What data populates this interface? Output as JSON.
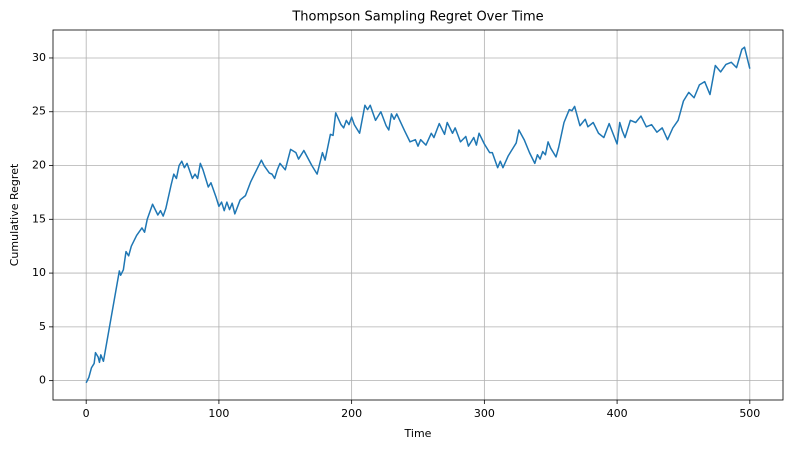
{
  "chart_data": {
    "type": "line",
    "title": "Thompson Sampling Regret Over Time",
    "xlabel": "Time",
    "ylabel": "Cumulative Regret",
    "x": [
      0,
      2,
      4,
      6,
      7,
      9,
      10,
      11,
      13,
      25,
      26,
      28,
      30,
      32,
      34,
      38,
      42,
      44,
      46,
      50,
      54,
      56,
      58,
      60,
      64,
      66,
      68,
      70,
      72,
      74,
      76,
      80,
      82,
      84,
      86,
      88,
      92,
      94,
      98,
      100,
      102,
      104,
      106,
      108,
      110,
      112,
      116,
      120,
      124,
      128,
      132,
      134,
      138,
      140,
      142,
      144,
      146,
      150,
      154,
      158,
      160,
      164,
      170,
      174,
      178,
      180,
      184,
      186,
      188,
      192,
      194,
      196,
      198,
      200,
      202,
      206,
      210,
      212,
      214,
      218,
      222,
      226,
      228,
      230,
      232,
      234,
      240,
      244,
      248,
      250,
      252,
      256,
      260,
      262,
      266,
      270,
      272,
      276,
      278,
      282,
      286,
      288,
      292,
      294,
      296,
      300,
      304,
      306,
      310,
      312,
      314,
      318,
      320,
      322,
      324,
      326,
      330,
      334,
      338,
      340,
      342,
      344,
      346,
      348,
      350,
      352,
      354,
      356,
      360,
      364,
      366,
      368,
      372,
      376,
      378,
      382,
      386,
      390,
      394,
      400,
      402,
      404,
      406,
      410,
      414,
      418,
      422,
      426,
      430,
      434,
      438,
      442,
      446,
      450,
      454,
      458,
      462,
      466,
      470,
      474,
      478,
      482,
      486,
      490,
      494,
      496,
      500
    ],
    "values": [
      -0.2,
      0.3,
      1.2,
      1.6,
      2.6,
      2.2,
      1.7,
      2.4,
      1.8,
      10.2,
      9.8,
      10.3,
      12,
      11.6,
      12.5,
      13.5,
      14.2,
      13.8,
      15,
      16.4,
      15.4,
      15.8,
      15.3,
      16,
      18.2,
      19.2,
      18.8,
      20,
      20.4,
      19.8,
      20.2,
      18.8,
      19.2,
      18.8,
      20.2,
      19.6,
      18,
      18.4,
      17,
      16.2,
      16.6,
      15.8,
      16.6,
      15.9,
      16.5,
      15.5,
      16.8,
      17.2,
      18.5,
      19.5,
      20.5,
      20,
      19.3,
      19.2,
      18.8,
      19.6,
      20.2,
      19.6,
      21.5,
      21.2,
      20.6,
      21.4,
      20,
      19.2,
      21.2,
      20.5,
      22.9,
      22.8,
      24.9,
      23.8,
      23.5,
      24.2,
      23.8,
      24.5,
      23.8,
      23,
      25.6,
      25.2,
      25.6,
      24.2,
      25,
      23.7,
      23.3,
      24.8,
      24.3,
      24.8,
      23.2,
      22.2,
      22.4,
      21.8,
      22.4,
      21.9,
      23,
      22.6,
      23.9,
      22.9,
      24,
      23,
      23.5,
      22.2,
      22.7,
      21.8,
      22.6,
      21.9,
      23,
      22,
      21.2,
      21.2,
      19.8,
      20.4,
      19.8,
      20.9,
      21.3,
      21.7,
      22.1,
      23.3,
      22.4,
      21.2,
      20.2,
      21,
      20.6,
      21.3,
      21,
      22.2,
      21.6,
      21.2,
      20.8,
      21.7,
      24,
      25.2,
      25.1,
      25.5,
      23.7,
      24.3,
      23.6,
      24,
      23,
      22.6,
      23.9,
      22,
      24,
      23.2,
      22.6,
      24.2,
      24,
      24.6,
      23.6,
      23.8,
      23.1,
      23.5,
      22.4,
      23.5,
      24.2,
      26,
      26.8,
      26.3,
      27.5,
      27.8,
      26.6,
      29.3,
      28.7,
      29.4,
      29.6,
      29.1,
      30.8,
      31,
      29
    ],
    "color": "#1f77b4",
    "xlim": [
      -25,
      525
    ],
    "ylim": [
      -1.8,
      32.6
    ],
    "xticks": [
      0,
      100,
      200,
      300,
      400,
      500
    ],
    "yticks": [
      0,
      5,
      10,
      15,
      20,
      25,
      30
    ],
    "grid": true
  }
}
